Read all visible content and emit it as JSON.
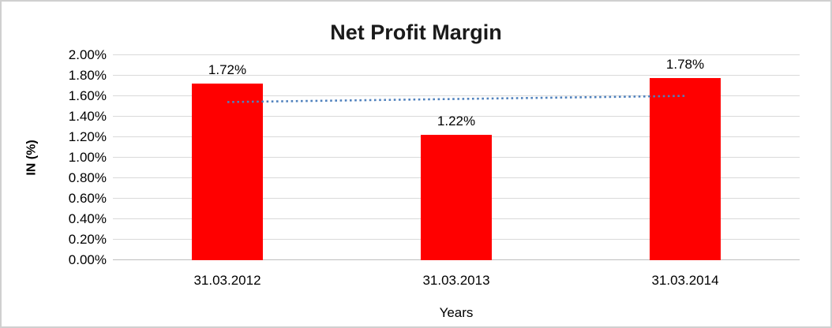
{
  "chart_data": {
    "type": "bar",
    "title": "Net Profit Margin",
    "xlabel": "Years",
    "ylabel": "IN (%)",
    "categories": [
      "31.03.2012",
      "31.03.2013",
      "31.03.2014"
    ],
    "values": [
      1.72,
      1.22,
      1.78
    ],
    "data_labels": [
      "1.72%",
      "1.22%",
      "1.78%"
    ],
    "y_ticks": [
      "0.00%",
      "0.20%",
      "0.40%",
      "0.60%",
      "0.80%",
      "1.00%",
      "1.20%",
      "1.40%",
      "1.60%",
      "1.80%",
      "2.00%"
    ],
    "ylim": [
      0,
      2.0
    ],
    "grid": true,
    "legend": "none",
    "bar_color": "#ff0000",
    "gridline_color": "#d9d9d9",
    "axis_line_color": "#bfbfbf",
    "trendline": {
      "style": "dotted",
      "color": "#4f81bd",
      "start_value": 1.543,
      "end_value": 1.603
    }
  }
}
